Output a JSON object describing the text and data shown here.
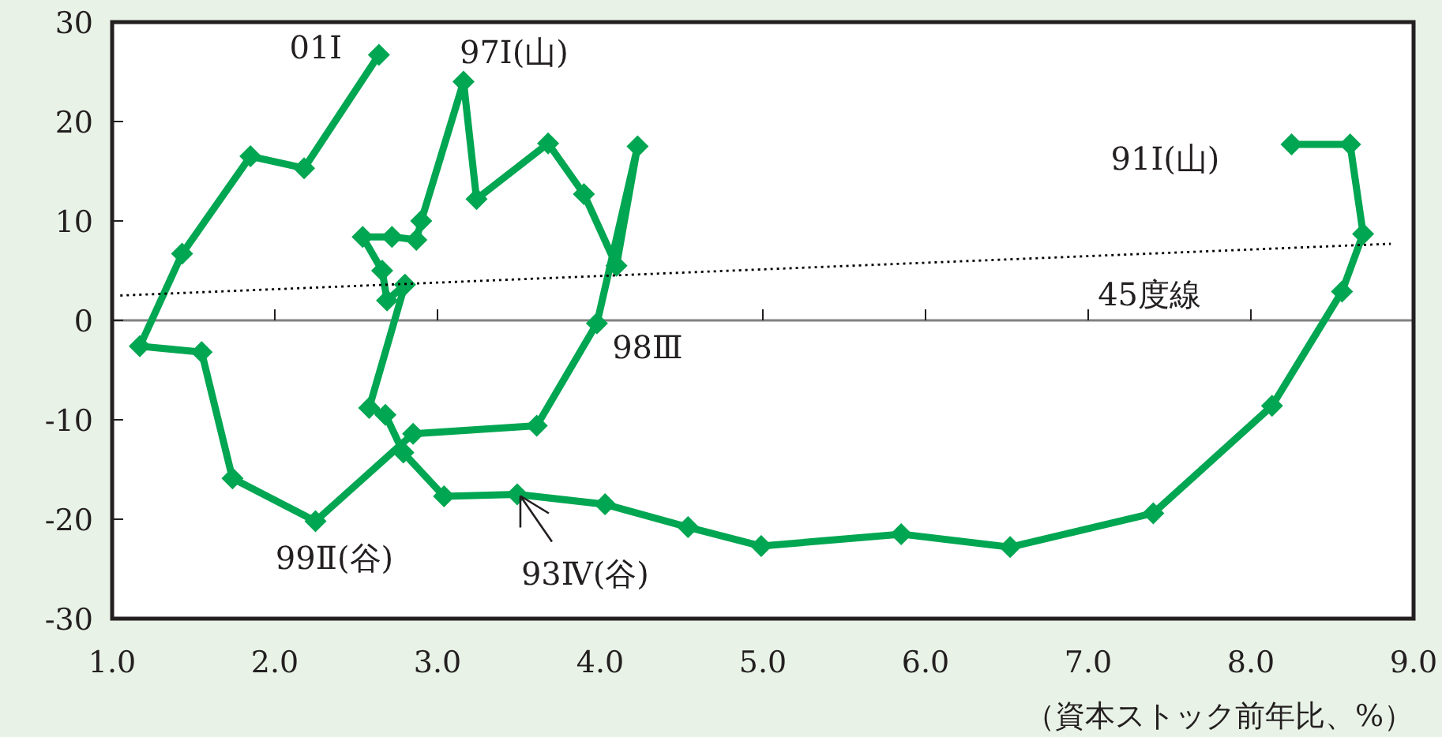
{
  "chart_data": {
    "type": "line",
    "xlabel": "（資本ストック前年比、%）",
    "xlim": [
      1.0,
      9.0
    ],
    "ylim": [
      -30,
      30
    ],
    "xticks": [
      {
        "value": 1,
        "label": "1.0"
      },
      {
        "value": 2,
        "label": "2.0"
      },
      {
        "value": 3,
        "label": "3.0"
      },
      {
        "value": 4,
        "label": "4.0"
      },
      {
        "value": 5,
        "label": "5.0"
      },
      {
        "value": 6,
        "label": "6.0"
      },
      {
        "value": 7,
        "label": "7.0"
      },
      {
        "value": 8,
        "label": "8.0"
      },
      {
        "value": 9,
        "label": "9.0"
      }
    ],
    "yticks": [
      -30,
      -20,
      -10,
      0,
      10,
      20,
      30
    ],
    "grid": false,
    "ref_lines": [
      {
        "axis": "y",
        "value": 0,
        "color": "#808080"
      }
    ],
    "series": [
      {
        "color": "#00a651",
        "marker": "diamond",
        "line_style": "solid",
        "x": [
          8.25,
          8.61,
          8.69,
          8.56,
          8.13,
          7.4,
          6.52,
          5.85,
          4.99,
          4.54,
          4.03,
          3.49,
          3.04,
          2.79,
          2.68,
          2.58,
          2.8,
          2.69,
          2.66,
          2.54,
          2.72,
          2.87,
          2.9,
          3.16,
          3.24,
          3.68,
          3.9,
          4.1,
          4.23,
          3.98,
          3.61,
          2.85,
          2.25,
          1.74,
          1.55,
          1.17,
          1.43,
          1.85,
          2.18,
          2.64
        ],
        "values": [
          17.7,
          17.7,
          8.7,
          2.9,
          -8.6,
          -19.4,
          -22.8,
          -21.5,
          -22.7,
          -20.8,
          -18.5,
          -17.5,
          -17.7,
          -13.3,
          -9.5,
          -8.8,
          3.6,
          2.0,
          5.0,
          8.4,
          8.4,
          8.1,
          10.0,
          24.0,
          12.2,
          17.8,
          12.7,
          5.5,
          17.5,
          -0.3,
          -10.6,
          -11.4,
          -20.2,
          -15.9,
          -3.2,
          -2.6,
          6.7,
          16.5,
          15.3,
          26.7
        ]
      },
      {
        "color": "#000000",
        "marker": "none",
        "line_style": "dotted",
        "x": [
          1.05,
          8.86
        ],
        "values": [
          2.5,
          7.7
        ]
      }
    ],
    "annotations": [
      {
        "text": "01Ⅰ",
        "x": 2.64,
        "y": 26.7
      },
      {
        "text": "97Ⅰ(山)",
        "x": 3.16,
        "y": 24.0
      },
      {
        "text": "91Ⅰ(山)",
        "x": 8.25,
        "y": 17.7
      },
      {
        "text": "98Ⅲ",
        "x": 3.98,
        "y": -0.3
      },
      {
        "text": "99Ⅱ(谷)",
        "x": 2.25,
        "y": -20.2
      },
      {
        "text": "93Ⅳ(谷)",
        "x": 3.49,
        "y": -17.5
      },
      {
        "text": "45度線",
        "x": 7.6,
        "y": 6.9
      }
    ]
  }
}
